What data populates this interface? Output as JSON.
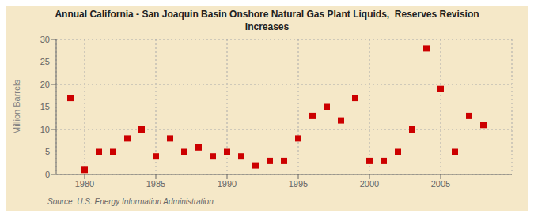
{
  "chart_data": {
    "type": "scatter",
    "title": "Annual California - San Joaquin Basin Onshore Natural Gas Plant Liquids,  Reserves Revision\nIncreases",
    "ylabel": "Million Barrels",
    "annotations": [
      "Source: U.S. Energy Information Administration"
    ],
    "x": [
      1979,
      1980,
      1981,
      1982,
      1983,
      1984,
      1985,
      1986,
      1987,
      1988,
      1989,
      1990,
      1991,
      1992,
      1993,
      1994,
      1995,
      1996,
      1997,
      1998,
      1999,
      2000,
      2001,
      2002,
      2003,
      2004,
      2005,
      2006,
      2007,
      2008
    ],
    "values": [
      17,
      1,
      5,
      5,
      8,
      10,
      4,
      8,
      5,
      6,
      4,
      5,
      4,
      2,
      3,
      3,
      8,
      13,
      15,
      12,
      17,
      3,
      3,
      5,
      10,
      28,
      19,
      5,
      13,
      11
    ],
    "color": "#cc0000",
    "marker": "square",
    "grid": true,
    "xlim": [
      1978,
      2010
    ],
    "xticks": [
      1980,
      1985,
      1990,
      1995,
      2000,
      2005
    ],
    "ylim": [
      0,
      30
    ],
    "yticks": [
      0,
      5,
      10,
      15,
      20,
      25,
      30
    ]
  }
}
